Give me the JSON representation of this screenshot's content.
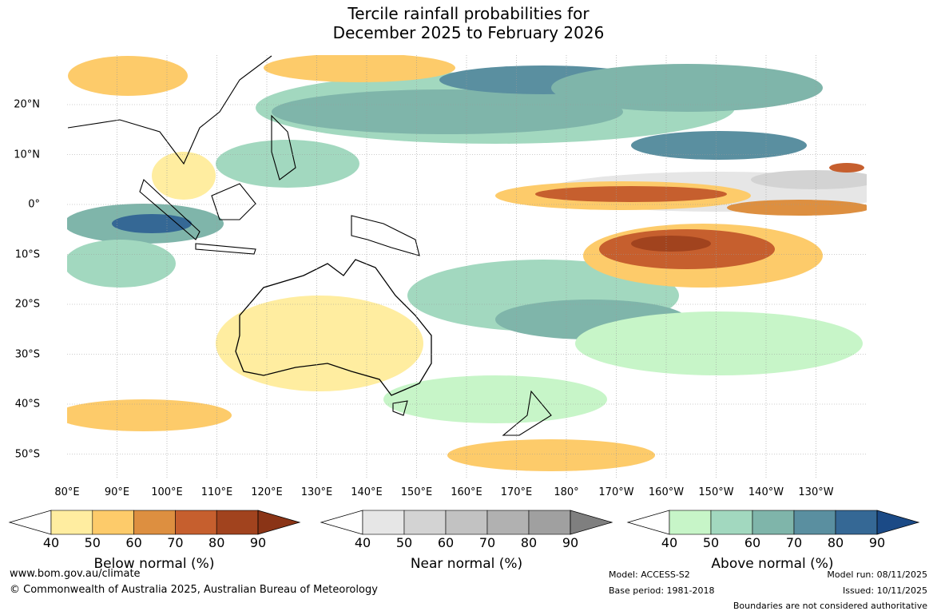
{
  "title": {
    "line1": "Tercile rainfall probabilities for",
    "line2": "December 2025 to February 2026"
  },
  "map": {
    "lon_labels": [
      "80°E",
      "90°E",
      "100°E",
      "110°E",
      "120°E",
      "130°E",
      "140°E",
      "150°E",
      "160°E",
      "170°E",
      "180°",
      "170°W",
      "160°W",
      "150°W",
      "140°W",
      "130°W"
    ],
    "lat_labels": [
      "20°N",
      "10°N",
      "0°",
      "10°S",
      "20°S",
      "30°S",
      "40°S",
      "50°S"
    ]
  },
  "colorbars": {
    "below": {
      "label": "Below normal (%)",
      "ticks": [
        "40",
        "50",
        "60",
        "70",
        "80",
        "90"
      ],
      "colors": [
        "#ffeda0",
        "#fdcb6a",
        "#dd8f40",
        "#c65f2e",
        "#a1431e",
        "#8a3416"
      ]
    },
    "near": {
      "label": "Near normal (%)",
      "ticks": [
        "40",
        "50",
        "60",
        "70",
        "80",
        "90"
      ],
      "colors": [
        "#e6e6e6",
        "#d3d3d3",
        "#c2c2c2",
        "#b1b1b1",
        "#a0a0a0",
        "#7f7f7f"
      ]
    },
    "above": {
      "label": "Above normal (%)",
      "ticks": [
        "40",
        "50",
        "60",
        "70",
        "80",
        "90"
      ],
      "colors": [
        "#c7f5c8",
        "#a2d8bf",
        "#7fb5aa",
        "#5a8fa0",
        "#356895",
        "#1b4a86"
      ]
    }
  },
  "footer": {
    "website": "www.bom.gov.au/climate",
    "copyright": "© Commonwealth of Australia 2025, Australian Bureau of Meteorology",
    "model": "Model: ACCESS-S2",
    "base_period": "Base period: 1981-2018",
    "model_run": "Model run: 08/11/2025",
    "issued": "Issued: 10/11/2025",
    "boundaries": "Boundaries are not considered authoritative"
  }
}
